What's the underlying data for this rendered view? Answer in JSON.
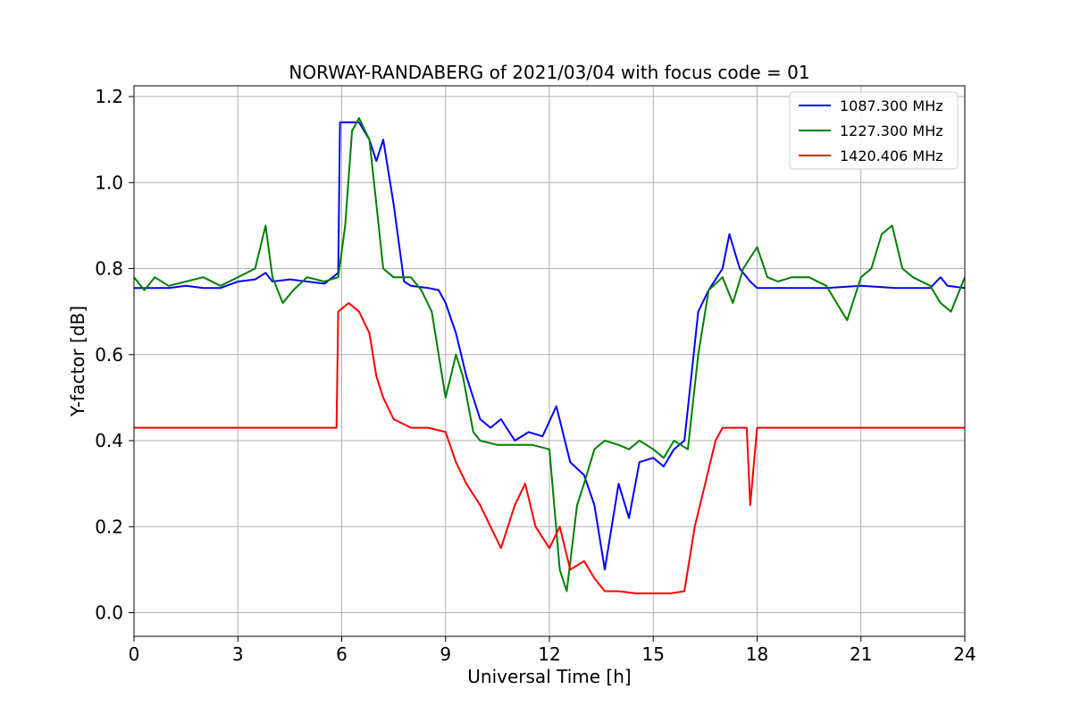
{
  "chart_data": {
    "type": "line",
    "title": "NORWAY-RANDABERG of 2021/03/04 with focus code = 01",
    "xlabel": "Universal Time [h]",
    "ylabel": "Y-factor [dB]",
    "xlim": [
      0,
      24
    ],
    "ylim": [
      -0.055,
      1.225
    ],
    "xticks": [
      0,
      3,
      6,
      9,
      12,
      15,
      18,
      21,
      24
    ],
    "xtick_labels": [
      "0",
      "3",
      "6",
      "9",
      "12",
      "15",
      "18",
      "21",
      "24"
    ],
    "yticks": [
      0.0,
      0.2,
      0.4,
      0.6,
      0.8,
      1.0,
      1.2
    ],
    "ytick_labels": [
      "0.0",
      "0.2",
      "0.4",
      "0.6",
      "0.8",
      "1.0",
      "1.2"
    ],
    "grid": true,
    "legend_position": "top-right",
    "series": [
      {
        "name": "1087.300 MHz",
        "color": "#0000ff",
        "x": [
          0,
          0.5,
          1.0,
          1.5,
          2.0,
          2.5,
          3.0,
          3.5,
          3.8,
          4.0,
          4.5,
          5.0,
          5.5,
          5.9,
          5.95,
          6.2,
          6.5,
          6.8,
          7.0,
          7.2,
          7.5,
          7.8,
          8.0,
          8.5,
          8.8,
          9.0,
          9.3,
          9.6,
          10.0,
          10.3,
          10.6,
          11.0,
          11.4,
          11.8,
          12.2,
          12.6,
          13.0,
          13.3,
          13.6,
          14.0,
          14.3,
          14.6,
          15.0,
          15.3,
          15.6,
          15.9,
          16.1,
          16.3,
          16.6,
          17.0,
          17.2,
          17.5,
          17.8,
          18.0,
          18.5,
          19.0,
          20.0,
          21.0,
          22.0,
          23.0,
          23.3,
          23.5,
          24.0
        ],
        "y": [
          0.755,
          0.755,
          0.755,
          0.76,
          0.755,
          0.755,
          0.77,
          0.775,
          0.79,
          0.77,
          0.775,
          0.77,
          0.765,
          0.79,
          1.14,
          1.14,
          1.14,
          1.1,
          1.05,
          1.1,
          0.95,
          0.77,
          0.76,
          0.755,
          0.75,
          0.72,
          0.65,
          0.55,
          0.45,
          0.43,
          0.45,
          0.4,
          0.42,
          0.41,
          0.48,
          0.35,
          0.32,
          0.25,
          0.1,
          0.3,
          0.22,
          0.35,
          0.36,
          0.34,
          0.38,
          0.4,
          0.55,
          0.7,
          0.75,
          0.8,
          0.88,
          0.8,
          0.77,
          0.755,
          0.755,
          0.755,
          0.755,
          0.76,
          0.755,
          0.755,
          0.78,
          0.76,
          0.755
        ]
      },
      {
        "name": "1227.300 MHz",
        "color": "#008000",
        "x": [
          0,
          0.3,
          0.6,
          1.0,
          1.5,
          2.0,
          2.5,
          3.0,
          3.5,
          3.8,
          4.0,
          4.3,
          4.6,
          5.0,
          5.5,
          5.9,
          6.1,
          6.3,
          6.5,
          6.8,
          7.0,
          7.2,
          7.5,
          8.0,
          8.3,
          8.6,
          9.0,
          9.3,
          9.5,
          9.8,
          10.0,
          10.5,
          11.0,
          11.5,
          12.0,
          12.3,
          12.5,
          12.8,
          13.0,
          13.3,
          13.6,
          14.0,
          14.3,
          14.6,
          15.0,
          15.3,
          15.6,
          16.0,
          16.3,
          16.6,
          17.0,
          17.3,
          17.6,
          18.0,
          18.3,
          18.6,
          19.0,
          19.5,
          20.0,
          20.3,
          20.6,
          21.0,
          21.3,
          21.6,
          21.9,
          22.2,
          22.5,
          23.0,
          23.3,
          23.6,
          24.0
        ],
        "y": [
          0.78,
          0.75,
          0.78,
          0.76,
          0.77,
          0.78,
          0.76,
          0.78,
          0.8,
          0.9,
          0.78,
          0.72,
          0.75,
          0.78,
          0.77,
          0.78,
          0.9,
          1.12,
          1.15,
          1.1,
          0.95,
          0.8,
          0.78,
          0.78,
          0.75,
          0.7,
          0.5,
          0.6,
          0.55,
          0.42,
          0.4,
          0.39,
          0.39,
          0.39,
          0.38,
          0.1,
          0.05,
          0.25,
          0.3,
          0.38,
          0.4,
          0.39,
          0.38,
          0.4,
          0.38,
          0.36,
          0.4,
          0.38,
          0.6,
          0.75,
          0.78,
          0.72,
          0.8,
          0.85,
          0.78,
          0.77,
          0.78,
          0.78,
          0.76,
          0.72,
          0.68,
          0.78,
          0.8,
          0.88,
          0.9,
          0.8,
          0.78,
          0.76,
          0.72,
          0.7,
          0.78
        ]
      },
      {
        "name": "1420.406 MHz",
        "color": "#ff0000",
        "x": [
          0,
          1.0,
          2.0,
          3.0,
          4.0,
          5.0,
          5.85,
          5.9,
          6.2,
          6.5,
          6.8,
          7.0,
          7.2,
          7.5,
          8.0,
          8.5,
          9.0,
          9.3,
          9.6,
          10.0,
          10.3,
          10.6,
          11.0,
          11.3,
          11.6,
          12.0,
          12.3,
          12.6,
          13.0,
          13.3,
          13.6,
          14.0,
          14.5,
          15.0,
          15.5,
          15.9,
          16.2,
          16.5,
          16.8,
          17.0,
          17.5,
          17.7,
          17.8,
          18.0,
          19.0,
          20.0,
          21.0,
          22.0,
          23.0,
          24.0
        ],
        "y": [
          0.43,
          0.43,
          0.43,
          0.43,
          0.43,
          0.43,
          0.43,
          0.7,
          0.72,
          0.7,
          0.65,
          0.55,
          0.5,
          0.45,
          0.43,
          0.43,
          0.42,
          0.35,
          0.3,
          0.25,
          0.2,
          0.15,
          0.25,
          0.3,
          0.2,
          0.15,
          0.2,
          0.1,
          0.12,
          0.08,
          0.05,
          0.05,
          0.045,
          0.045,
          0.045,
          0.05,
          0.2,
          0.3,
          0.4,
          0.43,
          0.43,
          0.43,
          0.25,
          0.43,
          0.43,
          0.43,
          0.43,
          0.43,
          0.43,
          0.43
        ]
      }
    ]
  }
}
